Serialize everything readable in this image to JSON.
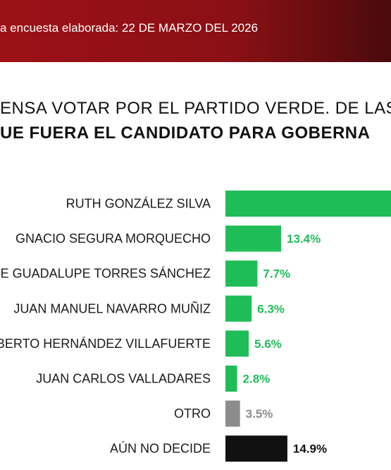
{
  "header": {
    "survey_date_text": "a encuesta elaborada: 22 DE MARZO DEL 2026"
  },
  "question": {
    "line1": "ENSA VOTAR POR EL PARTIDO VERDE. DE LAS",
    "line2": "UE FUERA EL CANDIDATO PARA GOBERNA"
  },
  "colors": {
    "brand_red": "#9c1116",
    "candidate_green": "#1fbd58",
    "other_gray": "#8c8c8c",
    "undecided_black": "#111111"
  },
  "chart_data": {
    "type": "bar",
    "orientation": "horizontal",
    "categories": [
      "RUTH GONZÁLEZ SILVA",
      "GNACIO SEGURA MORQUECHO",
      "E GUADALUPE TORRES SÁNCHEZ",
      "JUAN MANUEL NAVARRO MUÑIZ",
      "BERTO HERNÁNDEZ VILLAFUERTE",
      "JUAN CARLOS VALLADARES",
      "OTRO",
      "AÚN NO DECIDE"
    ],
    "values": [
      null,
      13.4,
      7.7,
      6.3,
      5.6,
      2.8,
      3.5,
      14.9
    ],
    "value_labels": [
      "",
      "13.4%",
      "7.7%",
      "6.3%",
      "5.6%",
      "2.8%",
      "3.5%",
      "14.9%"
    ],
    "bar_colors": [
      "#1fbd58",
      "#1fbd58",
      "#1fbd58",
      "#1fbd58",
      "#1fbd58",
      "#1fbd58",
      "#8c8c8c",
      "#111111"
    ],
    "label_colors": [
      "#1fbd58",
      "#1fbd58",
      "#1fbd58",
      "#1fbd58",
      "#1fbd58",
      "#1fbd58",
      "#8c8c8c",
      "#111111"
    ],
    "first_bar_extends_past_edge": true,
    "title": "",
    "xlabel": "",
    "ylabel": "",
    "grid": false,
    "legend": "none"
  }
}
